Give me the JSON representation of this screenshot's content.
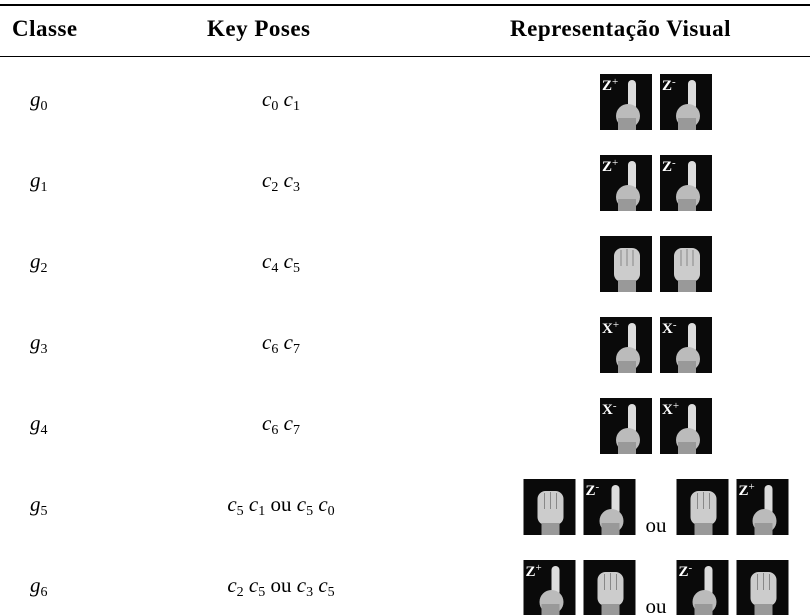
{
  "table": {
    "header": [
      "Classe",
      "Key Poses",
      "Representação Visual"
    ],
    "rows": [
      {
        "class": {
          "base": "g",
          "sub": "0"
        },
        "key_poses": [
          {
            "base": "c",
            "sub": "0"
          },
          {
            "base": "c",
            "sub": "1"
          }
        ],
        "visual": [
          {
            "label": "Z",
            "sup": "+"
          },
          {
            "label": "Z",
            "sup": "-"
          }
        ]
      },
      {
        "class": {
          "base": "g",
          "sub": "1"
        },
        "key_poses": [
          {
            "base": "c",
            "sub": "2"
          },
          {
            "base": "c",
            "sub": "3"
          }
        ],
        "visual": [
          {
            "label": "Z",
            "sup": "+"
          },
          {
            "label": "Z",
            "sup": "-"
          }
        ]
      },
      {
        "class": {
          "base": "g",
          "sub": "2"
        },
        "key_poses": [
          {
            "base": "c",
            "sub": "4"
          },
          {
            "base": "c",
            "sub": "5"
          }
        ],
        "visual": [
          null,
          null
        ]
      },
      {
        "class": {
          "base": "g",
          "sub": "3"
        },
        "key_poses": [
          {
            "base": "c",
            "sub": "6"
          },
          {
            "base": "c",
            "sub": "7"
          }
        ],
        "visual": [
          {
            "label": "X",
            "sup": "+"
          },
          {
            "label": "X",
            "sup": "-"
          }
        ]
      },
      {
        "class": {
          "base": "g",
          "sub": "4"
        },
        "key_poses": [
          {
            "base": "c",
            "sub": "6"
          },
          {
            "base": "c",
            "sub": "7"
          }
        ],
        "visual": [
          {
            "label": "X",
            "sup": "-"
          },
          {
            "label": "X",
            "sup": "+"
          }
        ]
      },
      {
        "class": {
          "base": "g",
          "sub": "5"
        },
        "key_poses": [
          {
            "base": "c",
            "sub": "5"
          },
          {
            "base": "c",
            "sub": "1"
          },
          "ou",
          {
            "base": "c",
            "sub": "5"
          },
          {
            "base": "c",
            "sub": "0"
          }
        ],
        "visual": [
          null,
          {
            "label": "Z",
            "sup": "-"
          },
          "ou",
          null,
          {
            "label": "Z",
            "sup": "+"
          }
        ]
      },
      {
        "class": {
          "base": "g",
          "sub": "6"
        },
        "key_poses": [
          {
            "base": "c",
            "sub": "2"
          },
          {
            "base": "c",
            "sub": "5"
          },
          "ou",
          {
            "base": "c",
            "sub": "3"
          },
          {
            "base": "c",
            "sub": "5"
          }
        ],
        "visual": [
          {
            "label": "Z",
            "sup": "+"
          },
          null,
          "ou",
          {
            "label": "Z",
            "sup": "-"
          },
          null
        ]
      }
    ]
  }
}
